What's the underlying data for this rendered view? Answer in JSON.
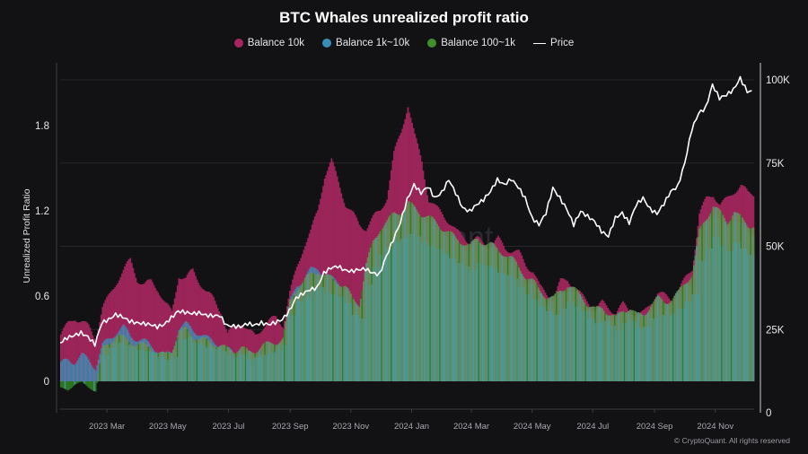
{
  "chart_data": {
    "type": "bar",
    "title": "BTC Whales unrealized profit ratio",
    "legend": [
      {
        "name": "Balance 10k",
        "color": "#a8245e",
        "kind": "dot"
      },
      {
        "name": "Balance 1k~10k",
        "color": "#3a8db4",
        "kind": "dot"
      },
      {
        "name": "Balance 100~1k",
        "color": "#3f8f2c",
        "kind": "dot"
      },
      {
        "name": "Price",
        "color": "#ffffff",
        "kind": "line"
      }
    ],
    "legend_position": "top-center",
    "ylabel_left": "Unrealized Profit Ratio",
    "ylabel_right": "",
    "xlabel": "",
    "y_left_ticks": [
      "0",
      "0.6",
      "1.2",
      "1.8"
    ],
    "y_left_range": [
      -0.2,
      2.25
    ],
    "y_right_ticks": [
      "0",
      "25K",
      "50K",
      "75K",
      "100K"
    ],
    "y_right_range": [
      0,
      100000
    ],
    "x_ticks": [
      "2023 Mar",
      "2023 May",
      "2023 Jul",
      "2023 Sep",
      "2023 Nov",
      "2024 Jan",
      "2024 Mar",
      "2024 May",
      "2024 Jul",
      "2024 Sep",
      "2024 Nov"
    ],
    "x_tick_dates": [
      "2023-03-01",
      "2023-05-01",
      "2023-07-01",
      "2023-09-01",
      "2023-11-01",
      "2024-01-01",
      "2024-03-01",
      "2024-05-01",
      "2024-07-01",
      "2024-09-01",
      "2024-11-01"
    ],
    "x_range": [
      "2023-01-13",
      "2024-12-10"
    ],
    "grid": true,
    "watermark": "CryptoQuant",
    "sample_interval_days": 7,
    "start_date": "2023-01-16",
    "series": [
      {
        "name": "Balance 10k",
        "axis": "left",
        "values": [
          0.33,
          0.4,
          0.45,
          0.42,
          0.38,
          0.3,
          0.52,
          0.6,
          0.7,
          0.78,
          0.85,
          0.72,
          0.68,
          0.7,
          0.65,
          0.55,
          0.48,
          0.75,
          0.72,
          0.78,
          0.7,
          0.62,
          0.58,
          0.5,
          0.33,
          0.38,
          0.42,
          0.35,
          0.32,
          0.38,
          0.42,
          0.45,
          0.4,
          0.62,
          0.8,
          0.95,
          1.05,
          1.2,
          1.45,
          1.55,
          1.4,
          1.25,
          1.18,
          1.1,
          1.08,
          1.15,
          1.2,
          1.3,
          1.6,
          1.75,
          1.95,
          1.72,
          1.55,
          1.28,
          1.22,
          1.18,
          1.12,
          1.05,
          1.02,
          0.98,
          1.0,
          0.97,
          0.95,
          1.0,
          0.94,
          0.92,
          0.9,
          0.82,
          0.78,
          0.66,
          0.62,
          0.58,
          0.7,
          0.72,
          0.66,
          0.6,
          0.56,
          0.5,
          0.55,
          0.52,
          0.48,
          0.54,
          0.5,
          0.45,
          0.48,
          0.56,
          0.62,
          0.6,
          0.58,
          0.64,
          0.72,
          0.8,
          1.18,
          1.28,
          1.32,
          1.24,
          1.28,
          1.34,
          1.38,
          1.32
        ]
      },
      {
        "name": "Balance 1k~10k",
        "axis": "left",
        "values": [
          0.12,
          0.15,
          0.14,
          0.18,
          0.15,
          0.1,
          0.25,
          0.3,
          0.35,
          0.38,
          0.32,
          0.3,
          0.28,
          0.25,
          0.22,
          0.18,
          0.2,
          0.38,
          0.4,
          0.36,
          0.34,
          0.3,
          0.28,
          0.26,
          0.22,
          0.2,
          0.22,
          0.18,
          0.2,
          0.22,
          0.24,
          0.26,
          0.3,
          0.55,
          0.68,
          0.72,
          0.78,
          0.8,
          0.75,
          0.72,
          0.7,
          0.65,
          0.55,
          0.52,
          0.8,
          0.95,
          1.05,
          1.1,
          1.15,
          1.18,
          1.22,
          1.2,
          1.15,
          1.12,
          1.1,
          1.06,
          1.02,
          0.98,
          0.95,
          0.92,
          0.98,
          0.96,
          0.94,
          0.9,
          0.88,
          0.85,
          0.78,
          0.72,
          0.68,
          0.62,
          0.58,
          0.55,
          0.6,
          0.66,
          0.62,
          0.58,
          0.52,
          0.48,
          0.5,
          0.46,
          0.42,
          0.48,
          0.5,
          0.44,
          0.45,
          0.52,
          0.55,
          0.54,
          0.56,
          0.6,
          0.66,
          0.72,
          1.0,
          1.1,
          1.2,
          1.12,
          1.08,
          1.15,
          1.1,
          1.05
        ]
      },
      {
        "name": "Balance 100~1k",
        "axis": "left",
        "values": [
          -0.05,
          -0.06,
          -0.02,
          -0.01,
          -0.04,
          -0.07,
          0.22,
          0.28,
          0.32,
          0.3,
          0.28,
          0.26,
          0.25,
          0.24,
          0.2,
          0.18,
          0.22,
          0.35,
          0.36,
          0.32,
          0.3,
          0.28,
          0.27,
          0.25,
          0.22,
          0.22,
          0.24,
          0.2,
          0.22,
          0.25,
          0.26,
          0.28,
          0.3,
          0.55,
          0.66,
          0.7,
          0.75,
          0.78,
          0.74,
          0.72,
          0.7,
          0.66,
          0.58,
          0.55,
          0.82,
          0.98,
          1.08,
          1.12,
          1.18,
          1.2,
          1.25,
          1.22,
          1.18,
          1.15,
          1.12,
          1.08,
          1.04,
          1.0,
          0.98,
          0.95,
          1.0,
          0.98,
          0.96,
          0.92,
          0.9,
          0.86,
          0.8,
          0.74,
          0.7,
          0.64,
          0.6,
          0.58,
          0.64,
          0.68,
          0.64,
          0.6,
          0.54,
          0.5,
          0.52,
          0.48,
          0.44,
          0.5,
          0.52,
          0.46,
          0.47,
          0.54,
          0.58,
          0.56,
          0.58,
          0.62,
          0.7,
          0.76,
          1.05,
          1.15,
          1.24,
          1.18,
          1.12,
          1.2,
          1.14,
          1.1
        ]
      },
      {
        "name": "Price",
        "axis": "right",
        "values": [
          21000,
          22500,
          23200,
          24000,
          22800,
          20500,
          27000,
          28000,
          29500,
          28800,
          27500,
          27000,
          26800,
          26500,
          25800,
          26500,
          28500,
          30500,
          30200,
          29800,
          30000,
          29300,
          29100,
          29200,
          26200,
          26000,
          25800,
          26800,
          26300,
          27000,
          26500,
          27100,
          28000,
          30500,
          34500,
          35800,
          37000,
          37500,
          42000,
          43500,
          44000,
          42800,
          42500,
          43000,
          43200,
          42000,
          41500,
          47000,
          52000,
          57000,
          64000,
          68500,
          66000,
          68000,
          64500,
          66200,
          70000,
          66000,
          61500,
          60500,
          62500,
          64000,
          66500,
          70000,
          68500,
          70200,
          67800,
          64500,
          58500,
          56500,
          60000,
          67500,
          64500,
          61200,
          56500,
          60500,
          59000,
          57500,
          54500,
          53000,
          58500,
          60000,
          57000,
          62500,
          64500,
          61200,
          59800,
          62800,
          66500,
          68000,
          75000,
          85000,
          90000,
          91500,
          98500,
          94500,
          95500,
          97000,
          100500,
          96500
        ]
      }
    ]
  },
  "copyright": "© CryptoQuant. All rights reserved"
}
